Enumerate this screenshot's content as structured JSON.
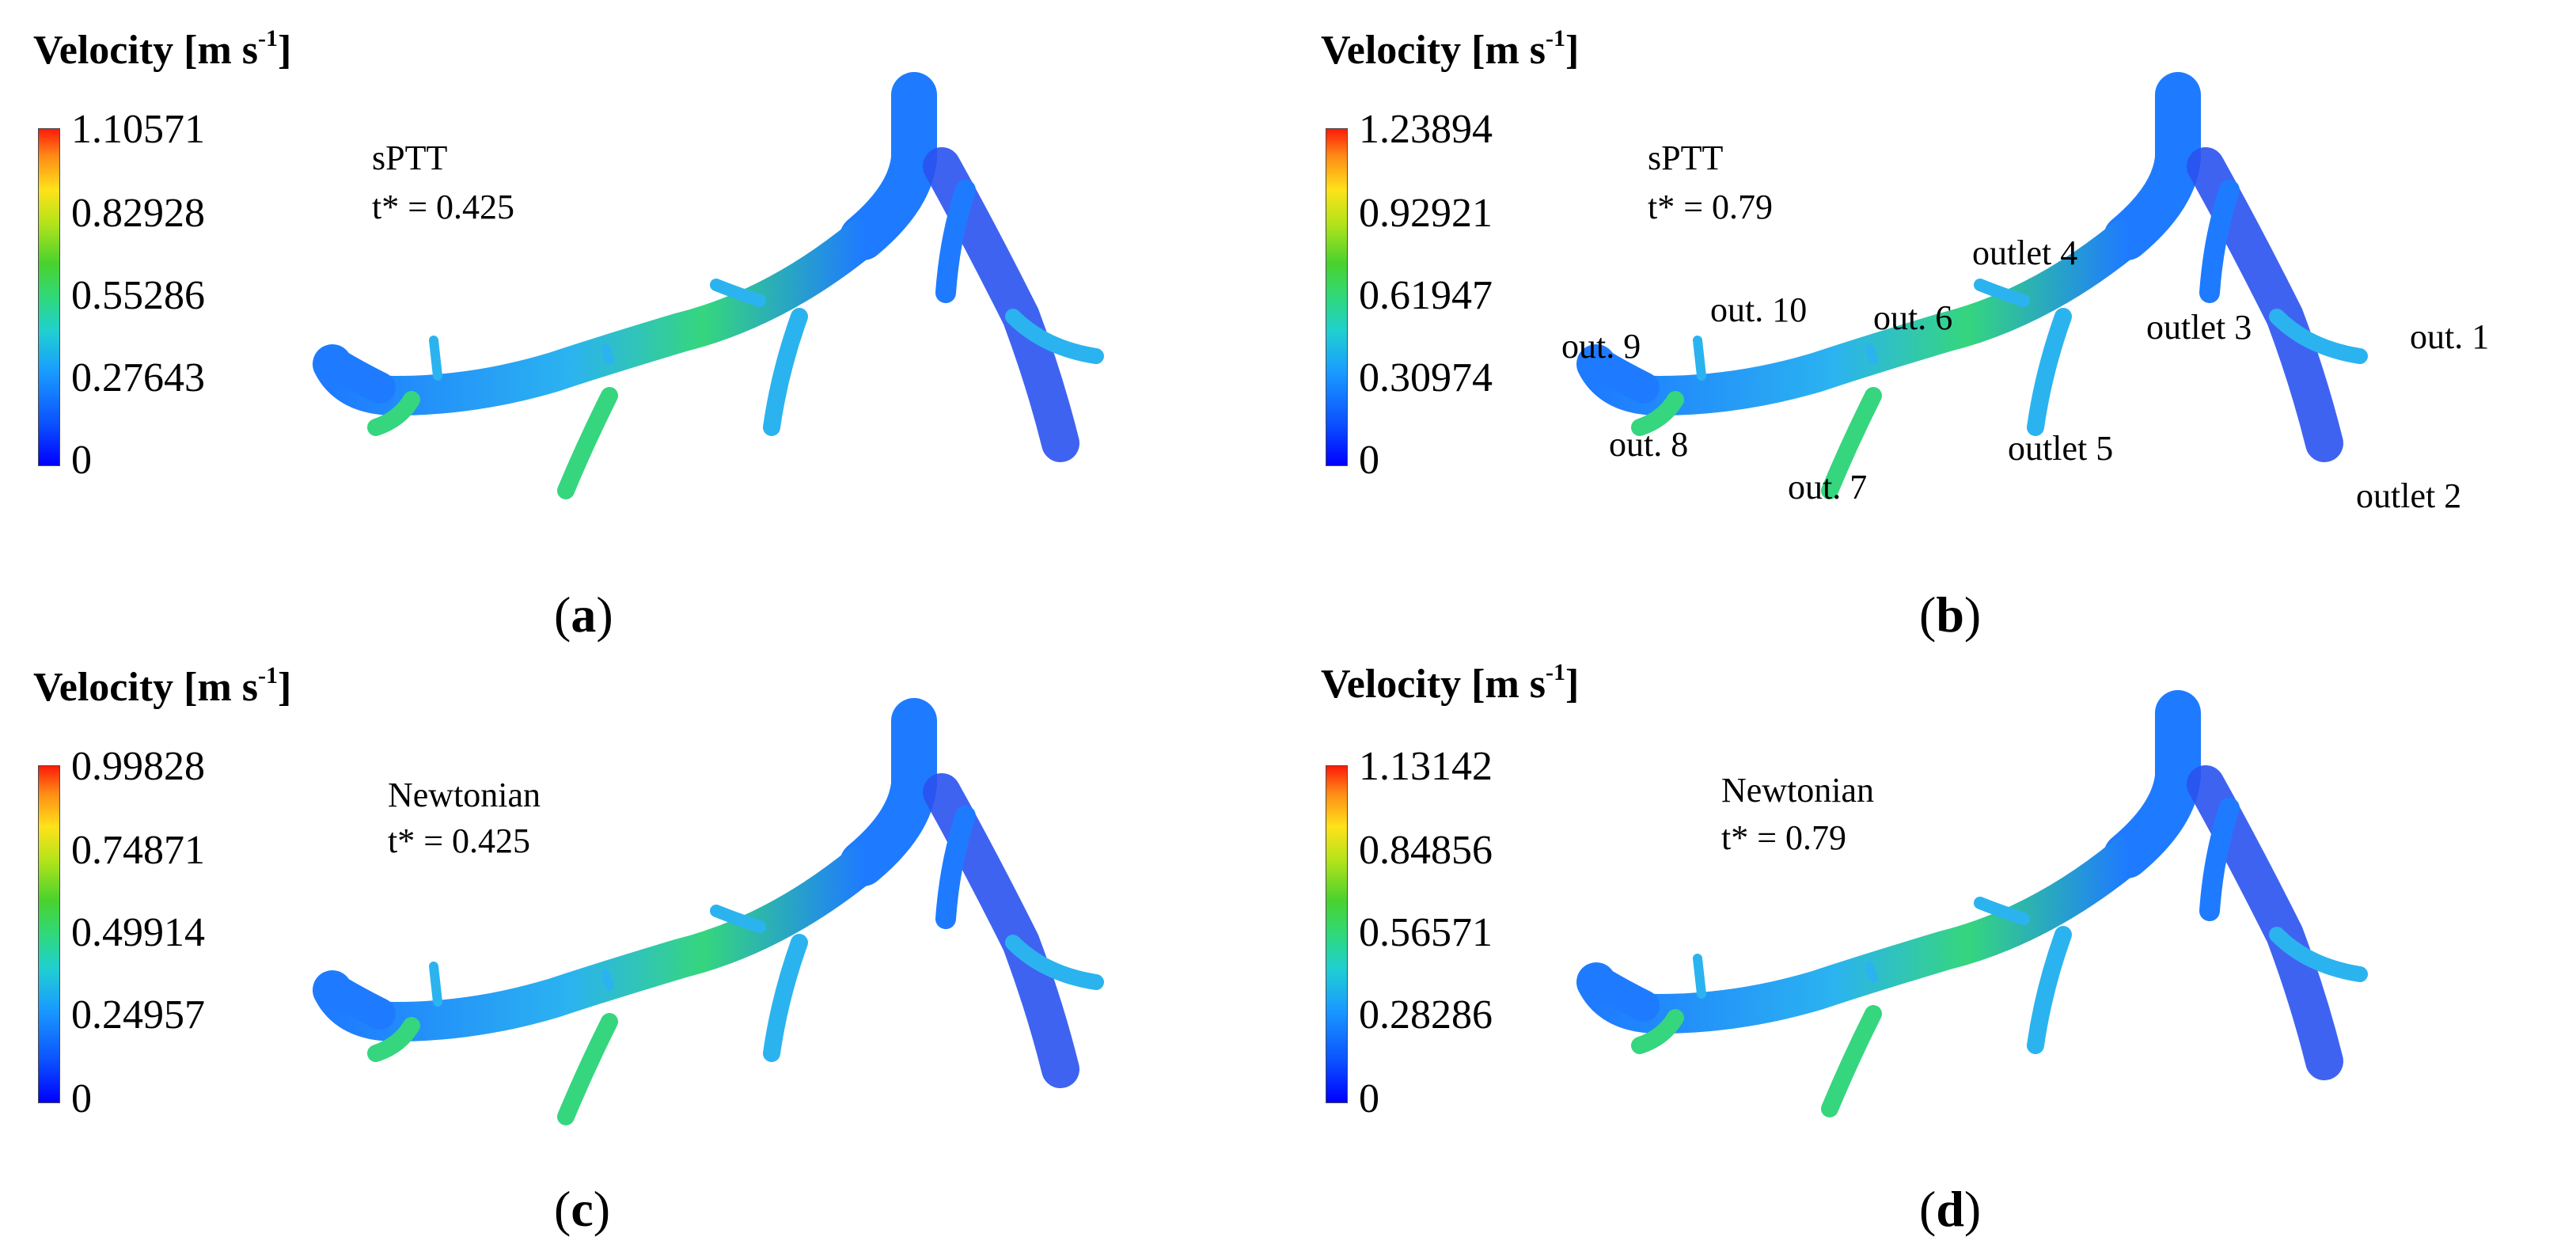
{
  "colorbar_title": "Velocity [m s",
  "colorbar_title_sup": "-1",
  "colorbar_title_close": "]",
  "colors": {
    "vessel_main": "#1e7bff",
    "vessel_dark": "#2a52f0",
    "vessel_mid": "#2bb3f0",
    "vessel_green": "#35d67e",
    "outlet_cap": "#3dd96a"
  },
  "panels": [
    {
      "tag": "a",
      "model": "sPTT",
      "time": "t* = 0.425",
      "ticks": [
        "1.10571",
        "0.82928",
        "0.55286",
        "0.27643",
        "0"
      ],
      "outlets": []
    },
    {
      "tag": "b",
      "model": "sPTT",
      "time": "t* = 0.79",
      "ticks": [
        "1.23894",
        "0.92921",
        "0.61947",
        "0.30974",
        "0"
      ],
      "outlets": [
        "out. 9",
        "out. 10",
        "out. 6",
        "outlet 4",
        "outlet 3",
        "out. 1",
        "out. 8",
        "out. 7",
        "outlet 5",
        "outlet 2"
      ]
    },
    {
      "tag": "c",
      "model": "Newtonian",
      "time": "t* = 0.425",
      "ticks": [
        "0.99828",
        "0.74871",
        "0.49914",
        "0.24957",
        "0"
      ],
      "outlets": []
    },
    {
      "tag": "d",
      "model": "Newtonian",
      "time": "t* = 0.79",
      "ticks": [
        "1.13142",
        "0.84856",
        "0.56571",
        "0.28286",
        "0"
      ],
      "outlets": []
    }
  ]
}
